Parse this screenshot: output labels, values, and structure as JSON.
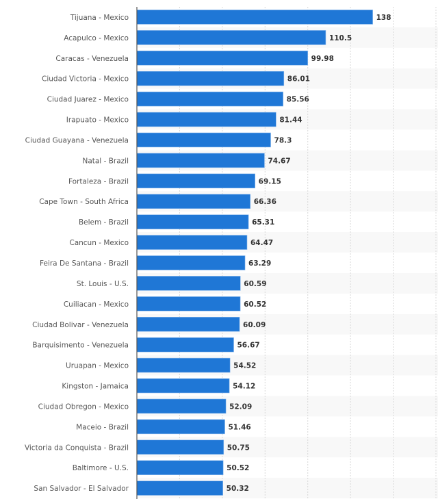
{
  "chart_data": {
    "type": "bar",
    "orientation": "horizontal",
    "title": "",
    "xlabel": "",
    "ylabel": "",
    "xlim": [
      0,
      175
    ],
    "grid": true,
    "legend": "none",
    "bar_color": "#1f77d6",
    "categories": [
      "Tijuana - Mexico",
      "Acapulco - Mexico",
      "Caracas - Venezuela",
      "Ciudad Victoria - Mexico",
      "Ciudad Juarez - Mexico",
      "Irapuato - Mexico",
      "Ciudad Guayana - Venezuela",
      "Natal - Brazil",
      "Fortaleza - Brazil",
      "Cape Town - South Africa",
      "Belem - Brazil",
      "Cancun - Mexico",
      "Feira De Santana - Brazil",
      "St. Louis - U.S.",
      "Cuiliacan - Mexico",
      "Ciudad Bolivar - Venezuela",
      "Barquisimento - Venezuela",
      "Uruapan - Mexico",
      "Kingston - Jamaica",
      "Ciudad Obregon - Mexico",
      "Maceio - Brazil",
      "Victoria da Conquista - Brazil",
      "Baltimore - U.S.",
      "San Salvador - El Salvador"
    ],
    "values": [
      138,
      110.5,
      99.98,
      86.01,
      85.56,
      81.44,
      78.3,
      74.67,
      69.15,
      66.36,
      65.31,
      64.47,
      63.29,
      60.59,
      60.52,
      60.09,
      56.67,
      54.52,
      54.12,
      52.09,
      51.46,
      50.75,
      50.52,
      50.32
    ],
    "value_labels": [
      "138",
      "110.5",
      "99.98",
      "86.01",
      "85.56",
      "81.44",
      "78.3",
      "74.67",
      "69.15",
      "66.36",
      "65.31",
      "64.47",
      "63.29",
      "60.59",
      "60.52",
      "60.09",
      "56.67",
      "54.52",
      "54.12",
      "52.09",
      "51.46",
      "50.75",
      "50.52",
      "50.32"
    ],
    "x_gridlines": [
      25,
      50,
      75,
      100,
      125,
      150,
      175
    ]
  }
}
